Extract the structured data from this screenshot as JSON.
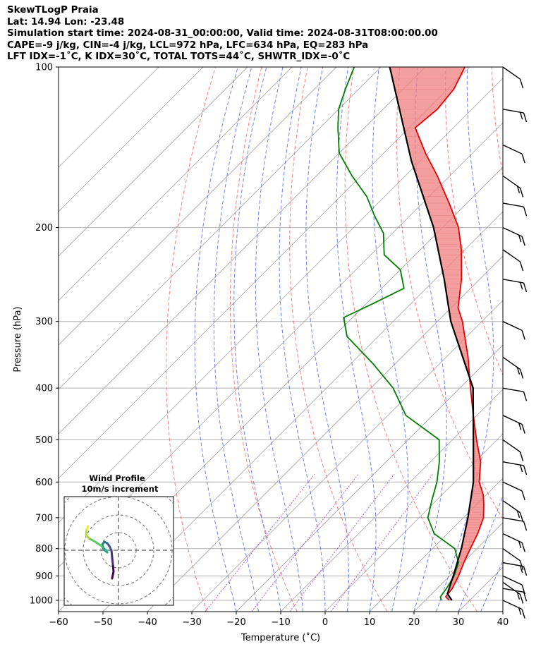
{
  "header": {
    "line1": "SkewTLogP Praia",
    "line2": "Lat: 14.94   Lon: -23.48",
    "line3": "Simulation start time: 2024-08-31_00:00:00, Valid time: 2024-08-31T08:00:00.00",
    "line4": "CAPE=-9 j/kg, CIN=-4 j/kg, LCL=972 hPa, LFC=634 hPa, EQ=283 hPa",
    "line5": "LFT IDX=-1˚C, K IDX=30˚C, TOTAL TOTS=44˚C, SHWTR_IDX=-0˚C"
  },
  "inset": {
    "title": "Wind Profile",
    "subtitle": "10m/s increment"
  },
  "chart_data": {
    "type": "line",
    "subtype": "skew-T log-P",
    "xlabel": "Temperature (˚C)",
    "ylabel": "Pressure (hPa)",
    "xlim": [
      -60,
      40
    ],
    "ylim": [
      1050,
      100
    ],
    "yscale": "log",
    "skew_degrees": 45,
    "x_ticks": [
      "−60",
      "−50",
      "−40",
      "−30",
      "−20",
      "−10",
      "0",
      "10",
      "20",
      "30",
      "40"
    ],
    "y_ticks": [
      100,
      200,
      300,
      400,
      500,
      600,
      700,
      800,
      900,
      1000
    ],
    "grid": true,
    "colors": {
      "temperature": "#ee0000",
      "dewpoint": "#008000",
      "parcel": "#000000",
      "cape_fill": "#7fb0d6",
      "cin_fill": "#f08080",
      "dry_adiabats": "#ff5555",
      "moist_adiabats": "#4455ee",
      "mixing_ratio": "#9933cc",
      "isotherms": "#999999"
    },
    "series": [
      {
        "role": "temperature",
        "p": [
          1000,
          985,
          950,
          900,
          850,
          800,
          750,
          700,
          660,
          634,
          600,
          550,
          500,
          450,
          400,
          350,
          300,
          283,
          250,
          220,
          200,
          180,
          160,
          145,
          130,
          120,
          110,
          100
        ],
        "t": [
          25.4,
          23.8,
          23.4,
          22.0,
          20.2,
          18.5,
          16.8,
          14.5,
          11.5,
          9.3,
          5.5,
          1.3,
          -4.6,
          -10.8,
          -17.6,
          -25.1,
          -34.4,
          -38.4,
          -44.1,
          -50.8,
          -56.4,
          -64.0,
          -72.8,
          -80.6,
          -88.6,
          -87.8,
          -88.6,
          -91.1
        ]
      },
      {
        "role": "dewpoint",
        "p": [
          1000,
          985,
          950,
          900,
          850,
          800,
          750,
          700,
          650,
          600,
          550,
          500,
          450,
          400,
          360,
          320,
          295,
          280,
          260,
          240,
          225,
          205,
          190,
          175,
          160,
          145,
          130,
          120,
          110,
          100
        ],
        "t": [
          23.6,
          22.6,
          22.1,
          21.0,
          19.0,
          15.0,
          7.0,
          2.0,
          -1.0,
          -4.0,
          -8.0,
          -13.0,
          -26.0,
          -35.0,
          -45.0,
          -57.0,
          -62.0,
          -59.0,
          -55.0,
          -60.0,
          -67.0,
          -72.0,
          -78.0,
          -84.0,
          -92.0,
          -100.0,
          -106.0,
          -110.0,
          -113.0,
          -116.0
        ]
      },
      {
        "role": "parcel",
        "p": [
          1000,
          972,
          900,
          800,
          700,
          600,
          500,
          400,
          300,
          250,
          200,
          150,
          100
        ],
        "t": [
          26.0,
          23.5,
          20.8,
          16.5,
          11.0,
          4.2,
          -5.3,
          -17.0,
          -37.0,
          -48.0,
          -62.0,
          -82.0,
          -108.0
        ]
      }
    ],
    "wind_barbs": {
      "p": [
        1000,
        950,
        925,
        900,
        850,
        800,
        750,
        700,
        650,
        600,
        550,
        500,
        450,
        400,
        350,
        300,
        250,
        220,
        200,
        180,
        160,
        140,
        120,
        100
      ]
    }
  }
}
